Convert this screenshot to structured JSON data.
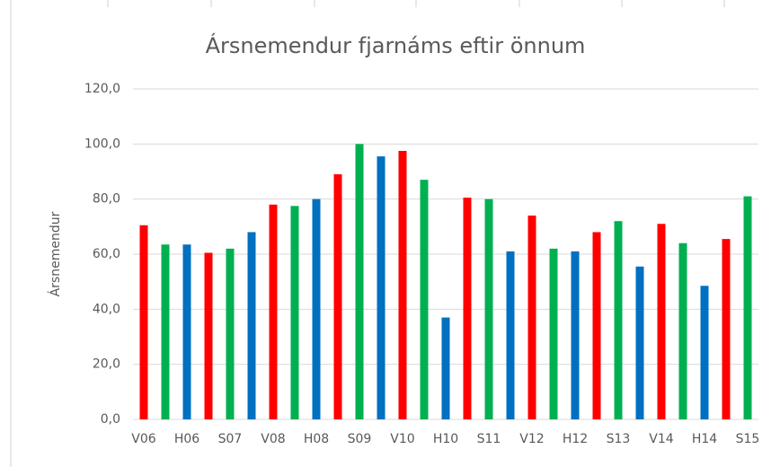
{
  "chart_data": {
    "type": "bar",
    "title": "Ársnemendur fjarnáms eftir önnum",
    "y_label": "Ársnemendur",
    "categories": [
      "V06",
      null,
      "H06",
      null,
      "S07",
      null,
      "V08",
      null,
      "H08",
      null,
      "S09",
      null,
      "V10",
      null,
      "H10",
      null,
      "S11",
      null,
      "V12",
      null,
      "H12",
      null,
      "S13",
      null,
      "V14",
      null,
      "H14",
      null,
      "S15"
    ],
    "values": [
      70.5,
      63.5,
      63.5,
      60.5,
      62,
      68,
      78,
      77.5,
      80,
      89,
      100,
      95.5,
      97.5,
      87,
      37,
      80.5,
      80,
      61,
      74,
      62,
      61,
      68,
      72,
      55.5,
      71,
      64,
      48.5,
      65.5,
      81
    ],
    "colors": [
      "#ff0000",
      "#00b050",
      "#0070c0"
    ],
    "ylim": [
      0,
      120
    ],
    "yticks": [
      {
        "value": 0,
        "label": "0,0"
      },
      {
        "value": 20,
        "label": "20,0"
      },
      {
        "value": 40,
        "label": "40,0"
      },
      {
        "value": 60,
        "label": "60,0"
      },
      {
        "value": 80,
        "label": "80,0"
      },
      {
        "value": 100,
        "label": "100,0"
      },
      {
        "value": 120,
        "label": "120,0"
      }
    ],
    "grid": true
  }
}
